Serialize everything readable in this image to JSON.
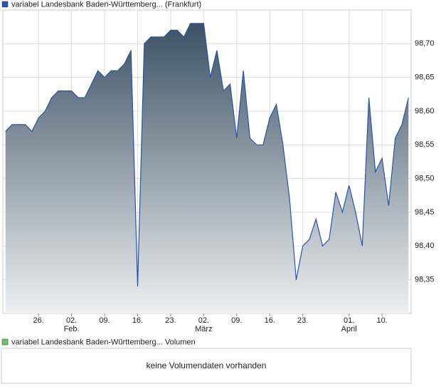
{
  "chart_data": {
    "type": "area",
    "legend": "variabel Landesbank Baden-Württemberg... (Frankfurt)",
    "x": [
      0,
      1,
      2,
      3,
      4,
      5,
      6,
      7,
      8,
      9,
      10,
      11,
      12,
      13,
      14,
      15,
      16,
      17,
      18,
      19,
      20,
      21,
      22,
      23,
      24,
      25,
      26,
      27,
      28,
      29,
      30,
      31,
      32,
      33,
      34,
      35,
      36,
      37,
      38,
      39,
      40,
      41,
      42,
      43,
      44,
      45,
      46,
      47,
      48,
      49,
      50,
      51,
      52,
      53,
      54,
      55,
      56,
      57,
      58,
      59,
      60,
      61
    ],
    "series": [
      {
        "name": "variabel Landesbank Baden-Württemberg... (Frankfurt)",
        "color": "#2b52b0",
        "values": [
          98.57,
          98.58,
          98.58,
          98.58,
          98.57,
          98.59,
          98.6,
          98.62,
          98.63,
          98.63,
          98.63,
          98.62,
          98.62,
          98.64,
          98.66,
          98.65,
          98.66,
          98.66,
          98.67,
          98.69,
          98.34,
          98.7,
          98.71,
          98.71,
          98.71,
          98.72,
          98.72,
          98.71,
          98.73,
          98.73,
          98.73,
          98.65,
          98.69,
          98.63,
          98.64,
          98.56,
          98.66,
          98.56,
          98.55,
          98.55,
          98.59,
          98.61,
          98.55,
          98.47,
          98.35,
          98.4,
          98.41,
          98.44,
          98.4,
          98.41,
          98.48,
          98.45,
          98.49,
          98.45,
          98.4,
          98.62,
          98.51,
          98.53,
          98.46,
          98.56,
          98.58,
          98.62
        ]
      }
    ],
    "fill_colors": [
      "#3c5264",
      "#eef0f2"
    ],
    "xlim": [
      -0.4,
      61.4
    ],
    "xticks": [
      {
        "value": 5,
        "label": "26."
      },
      {
        "value": 10,
        "label": "02."
      },
      {
        "value": 15,
        "label": "09."
      },
      {
        "value": 20,
        "label": "16."
      },
      {
        "value": 25,
        "label": "23."
      },
      {
        "value": 30,
        "label": "02."
      },
      {
        "value": 35,
        "label": "09."
      },
      {
        "value": 40,
        "label": "16."
      },
      {
        "value": 45,
        "label": "23."
      },
      {
        "value": 52,
        "label": "01."
      },
      {
        "value": 57,
        "label": "10."
      }
    ],
    "month_labels": [
      {
        "value": 10,
        "label": "Feb."
      },
      {
        "value": 30,
        "label": "März"
      },
      {
        "value": 52,
        "label": "April"
      }
    ],
    "ylim": [
      98.3,
      98.75
    ],
    "yticks": [
      {
        "value": 98.35,
        "label": "98,35"
      },
      {
        "value": 98.4,
        "label": "98,40"
      },
      {
        "value": 98.45,
        "label": "98,45"
      },
      {
        "value": 98.5,
        "label": "98,50"
      },
      {
        "value": 98.55,
        "label": "98,55"
      },
      {
        "value": 98.6,
        "label": "98,60"
      },
      {
        "value": 98.65,
        "label": "98,65"
      },
      {
        "value": 98.7,
        "label": "98,70"
      }
    ],
    "grid": true
  },
  "volume_panel": {
    "legend": "variabel Landesbank Baden-Württemberg... Volumen",
    "color": "#6cc46c",
    "message": "keine Volumendaten vorhanden"
  }
}
